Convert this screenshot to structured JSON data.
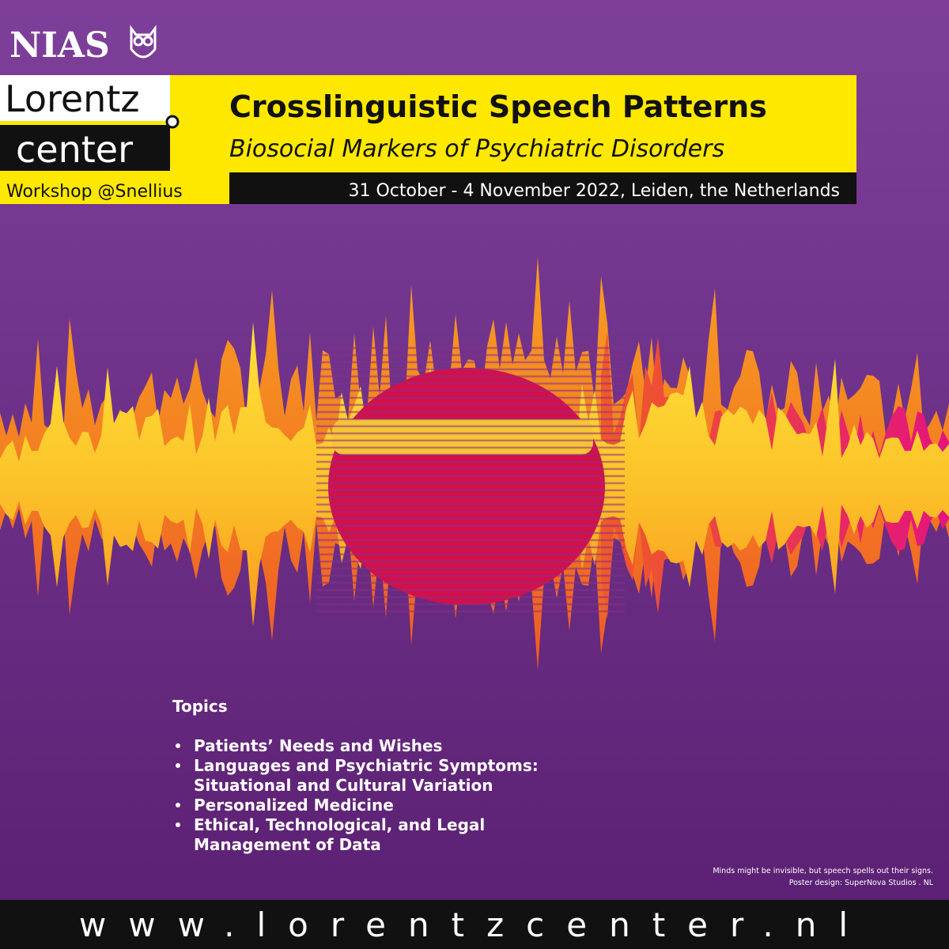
{
  "header": {
    "logo": "NIAS",
    "brand_line1": "Lorentz",
    "brand_line2": "center",
    "workshop": "Workshop @Snellius"
  },
  "event": {
    "title": "Crosslinguistic Speech Patterns",
    "subtitle": "Biosocial Markers of Psychiatric Disorders",
    "date_place": "31 October - 4 November 2022, Leiden, the Netherlands"
  },
  "topics": {
    "heading": "Topics",
    "items": [
      [
        "Patients’ Needs and Wishes"
      ],
      [
        "Languages and Psychiatric Symptoms:",
        "Situational and Cultural Variation"
      ],
      [
        "Personalized Medicine"
      ],
      [
        "Ethical, Technological, and Legal",
        "Management of Data"
      ]
    ]
  },
  "credits": [
    "Minds might be invisible, but speech spells out their signs.",
    "Poster design: SuperNova Studios . NL"
  ],
  "footer": {
    "url": "www.lorentzcenter.nl"
  }
}
